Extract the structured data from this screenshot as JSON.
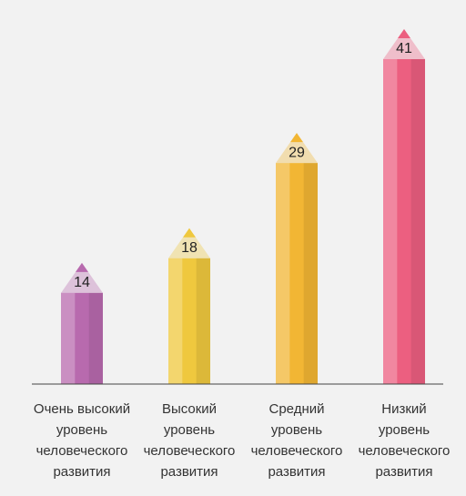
{
  "chart_data": {
    "type": "pencil-bar",
    "categories": [
      [
        "Очень высокий",
        "уровень",
        "человеческого",
        "развития"
      ],
      [
        "Высокий",
        "уровень",
        "человеческого",
        "развития"
      ],
      [
        "Средний",
        "уровень",
        "человеческого",
        "развития"
      ],
      [
        "Низкий",
        "уровень",
        "человеческого",
        "развития"
      ]
    ],
    "values": [
      14,
      18,
      29,
      41
    ],
    "colors": [
      "#b86aae",
      "#efc83e",
      "#f2b634",
      "#ec5f80"
    ]
  }
}
